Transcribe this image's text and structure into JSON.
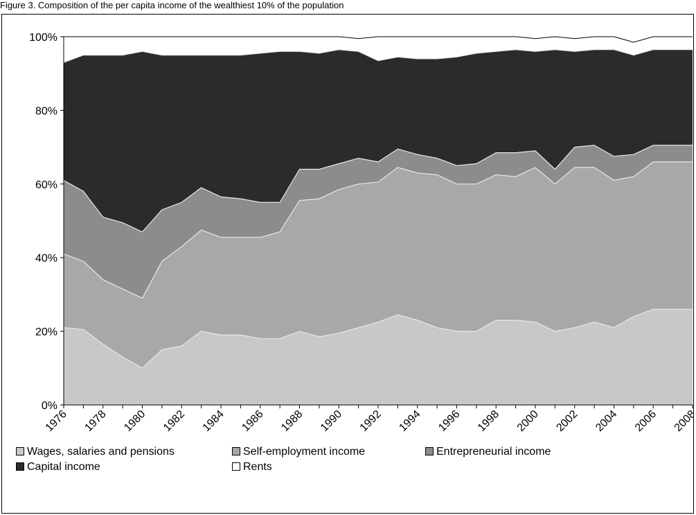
{
  "caption": "Figure 3. Composition of the per capita income of the wealthiest 10% of the population",
  "chart_data": {
    "type": "area",
    "stacked": true,
    "percent": true,
    "x": [
      "1976",
      "1977",
      "1978",
      "1979",
      "1980",
      "1981",
      "1982",
      "1983",
      "1984",
      "1985",
      "1986",
      "1987",
      "1988",
      "1989",
      "1990",
      "1991",
      "1992",
      "1993",
      "1994",
      "1995",
      "1996",
      "1997",
      "1998",
      "1999",
      "2000",
      "2001",
      "2002",
      "2003",
      "2004",
      "2005",
      "2006",
      "2007",
      "2008"
    ],
    "tick_labels": [
      "1976",
      "1978",
      "1980",
      "1982",
      "1984",
      "1986",
      "1988",
      "1990",
      "1992",
      "1994",
      "1996",
      "1998",
      "2000",
      "2002",
      "2004",
      "2006",
      "2008"
    ],
    "y_ticks": [
      "0%",
      "20%",
      "40%",
      "60%",
      "80%",
      "100%"
    ],
    "ylim": [
      0,
      100
    ],
    "legend_position": "bottom",
    "series": [
      {
        "name": "Wages, salaries and pensions",
        "color": "#c8c8c8",
        "values": [
          21,
          20.5,
          16.5,
          13,
          10,
          15,
          16,
          20,
          19,
          19,
          18,
          18,
          20,
          18.5,
          19.5,
          21,
          22.5,
          24.5,
          23,
          21,
          20,
          20,
          23,
          23,
          22.5,
          20,
          21,
          22.5,
          21,
          24,
          26,
          26,
          26
        ]
      },
      {
        "name": "Self-employment income",
        "color": "#a8a8a8",
        "values": [
          20,
          18.5,
          17.5,
          18.5,
          19,
          24,
          27,
          27.5,
          26.5,
          26.5,
          27.5,
          29,
          35.5,
          37.5,
          39,
          39,
          38,
          40,
          40,
          41.5,
          40,
          40,
          39.5,
          39,
          42,
          40,
          43.5,
          42,
          40,
          38,
          40,
          40,
          40
        ]
      },
      {
        "name": "Entrepreneurial income",
        "color": "#8c8c8c",
        "values": [
          20,
          19,
          17,
          18,
          18,
          14,
          12,
          11.5,
          11,
          10.5,
          9.5,
          8,
          8.5,
          8,
          7,
          7,
          5.5,
          5,
          5,
          4.5,
          5,
          5.5,
          6,
          6.5,
          4.5,
          4,
          5.5,
          6,
          6.5,
          6,
          4.5,
          4.5,
          4.5
        ]
      },
      {
        "name": "Capital income",
        "color": "#2b2b2b",
        "values": [
          32,
          37,
          44,
          45.5,
          49,
          42,
          40,
          36,
          38.5,
          39,
          40.5,
          41,
          32,
          31.5,
          31,
          29,
          27.5,
          25,
          26,
          27,
          29.5,
          30,
          27.5,
          28,
          27,
          32.5,
          26,
          26,
          29,
          27,
          26,
          26,
          26
        ]
      },
      {
        "name": "Rents",
        "color": "#ffffff",
        "values": [
          7,
          5,
          5,
          5,
          4,
          5,
          5,
          5,
          5,
          5,
          4.5,
          4,
          4,
          4.5,
          3.5,
          3.5,
          6.5,
          5.5,
          6,
          6,
          5.5,
          4.5,
          4,
          3.5,
          3.5,
          3.5,
          3.5,
          3.5,
          3.5,
          3.5,
          3.5,
          3.5,
          3.5
        ]
      }
    ]
  }
}
